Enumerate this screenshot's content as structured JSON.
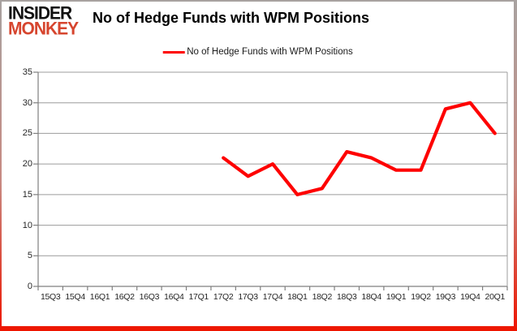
{
  "logo": {
    "line1": "INSIDER",
    "line2": "MONKEY"
  },
  "header": {
    "title": "No of Hedge Funds with WPM Positions"
  },
  "legend": {
    "label": "No of Hedge Funds with WPM Positions"
  },
  "colors": {
    "line": "#fe0000",
    "logo_red": "#d6452e",
    "grid": "#9c9c9c",
    "axis": "#7f7f7f",
    "frame_bottom": "#ee1500"
  },
  "chart_data": {
    "type": "line",
    "title": "No of Hedge Funds with WPM Positions",
    "categories": [
      "15Q3",
      "15Q4",
      "16Q1",
      "16Q2",
      "16Q3",
      "16Q4",
      "17Q1",
      "17Q2",
      "17Q3",
      "17Q4",
      "18Q1",
      "18Q2",
      "18Q3",
      "18Q4",
      "19Q1",
      "19Q2",
      "19Q3",
      "19Q4",
      "20Q1"
    ],
    "series": [
      {
        "name": "No of Hedge Funds with WPM Positions",
        "color": "#fe0000",
        "start_index": 7,
        "values": [
          21,
          18,
          20,
          15,
          16,
          22,
          21,
          19,
          19,
          29,
          30,
          25
        ]
      }
    ],
    "xlabel": "",
    "ylabel": "",
    "ylim": [
      0,
      35
    ],
    "yticks": [
      0,
      5,
      10,
      15,
      20,
      25,
      30,
      35
    ],
    "grid": true,
    "legend_position": "top-center"
  }
}
